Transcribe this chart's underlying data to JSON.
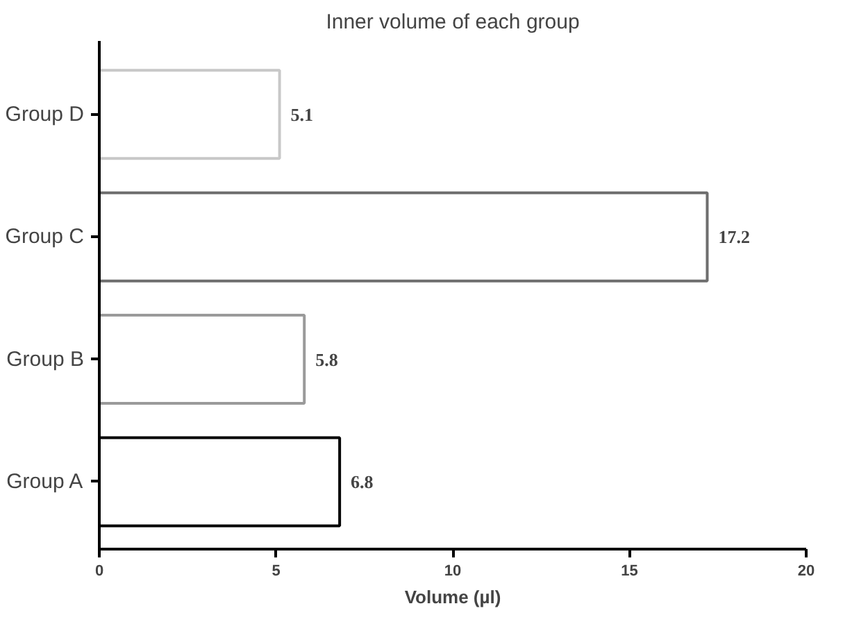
{
  "chart_data": {
    "type": "bar",
    "orientation": "horizontal",
    "title": "Inner volume of each group",
    "xlabel": "Volume (µl)",
    "categories": [
      "Group D",
      "Group C",
      "Group B",
      "Group A"
    ],
    "values": [
      5.1,
      17.2,
      5.8,
      6.8
    ],
    "colors": [
      "#c8c8c8",
      "#6e6e6e",
      "#9a9a9a",
      "#000000"
    ],
    "xlim": [
      0,
      20
    ],
    "xticks": [
      0,
      5,
      10,
      15,
      20
    ],
    "grid": false,
    "data_labels": true
  }
}
